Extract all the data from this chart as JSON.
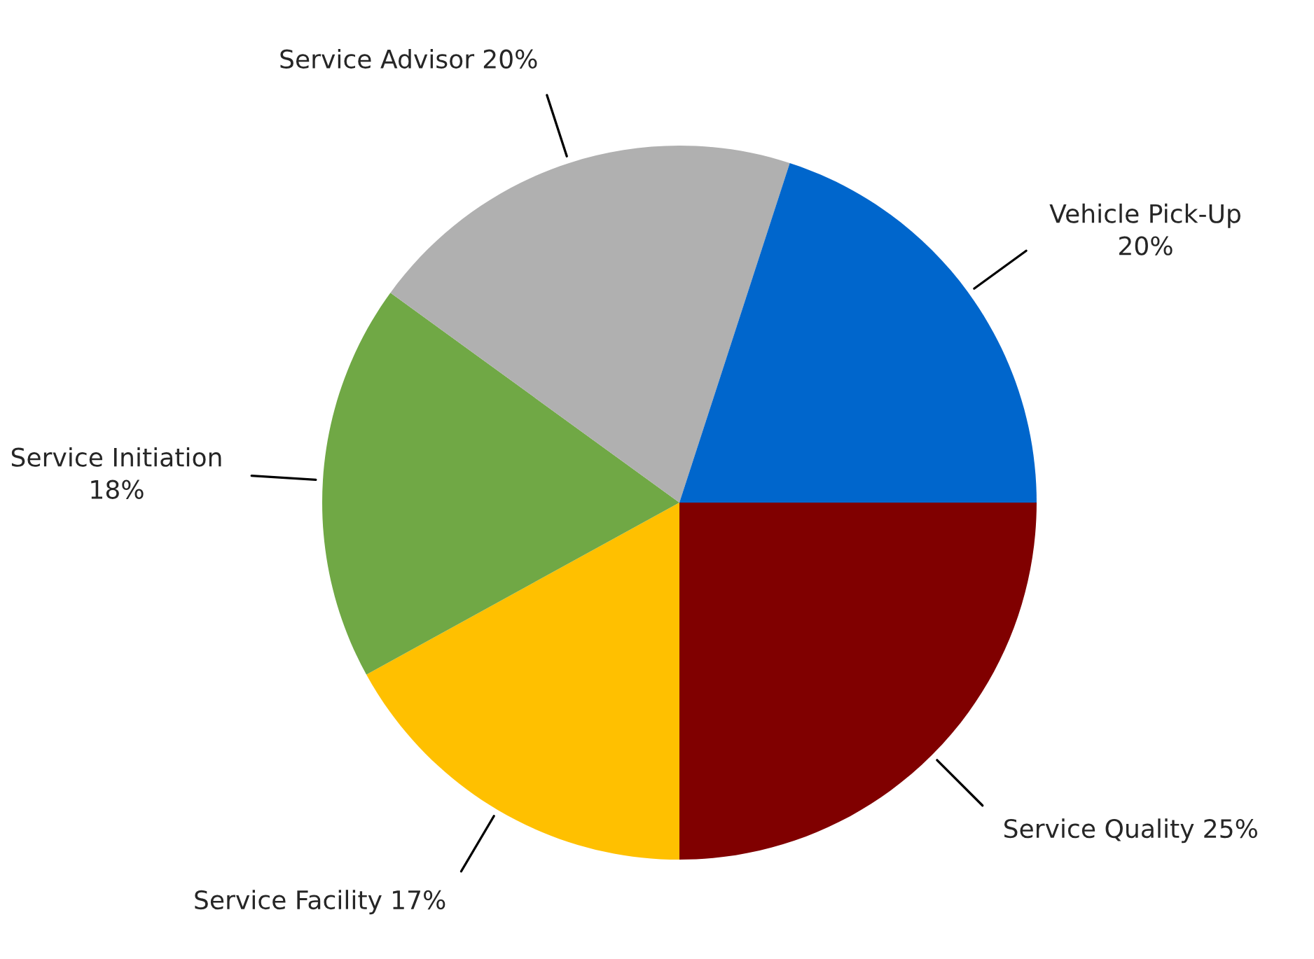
{
  "chart_data": {
    "type": "pie",
    "categories": [
      "Service Quality",
      "Service Facility",
      "Service Initiation",
      "Service Advisor",
      "Vehicle Pick-Up"
    ],
    "values": [
      25,
      17,
      18,
      20,
      20
    ],
    "value_labels": [
      "25%",
      "17%",
      "18%",
      "20%",
      "20%"
    ],
    "colors": [
      "#800000",
      "#ffc000",
      "#70a845",
      "#b0b0b0",
      "#0066cc"
    ],
    "legend": false
  }
}
